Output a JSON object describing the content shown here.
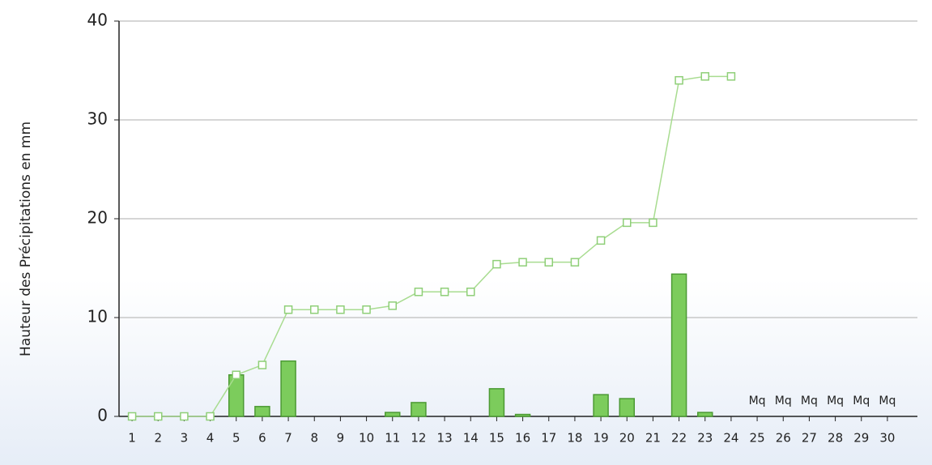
{
  "chart_data": {
    "type": "bar+line",
    "y_label": "Hauteur des Précipitations en mm",
    "categories": [
      "1",
      "2",
      "3",
      "4",
      "5",
      "6",
      "7",
      "8",
      "9",
      "10",
      "11",
      "12",
      "13",
      "14",
      "15",
      "16",
      "17",
      "18",
      "19",
      "20",
      "21",
      "22",
      "23",
      "24",
      "25",
      "26",
      "27",
      "28",
      "29",
      "30"
    ],
    "series": [
      {
        "type": "bar",
        "color": "#7ccc5c",
        "values": [
          0,
          0,
          0,
          0,
          4.2,
          1.0,
          5.6,
          0,
          0,
          0,
          0.4,
          1.4,
          0,
          0,
          2.8,
          0.2,
          0,
          0,
          2.2,
          1.8,
          0,
          14.4,
          0.4,
          0,
          null,
          null,
          null,
          null,
          null,
          null
        ],
        "value_labels": [
          null,
          null,
          null,
          null,
          null,
          null,
          null,
          null,
          null,
          null,
          null,
          null,
          null,
          null,
          null,
          null,
          null,
          null,
          null,
          null,
          null,
          null,
          null,
          null,
          "Mq",
          "Mq",
          "Mq",
          "Mq",
          "Mq",
          "Mq"
        ]
      },
      {
        "type": "line",
        "color": "#a8dc90",
        "values": [
          0,
          0,
          0,
          0,
          4.2,
          5.2,
          10.8,
          10.8,
          10.8,
          10.8,
          11.2,
          12.6,
          12.6,
          12.6,
          15.4,
          15.6,
          15.6,
          15.6,
          17.8,
          19.6,
          19.6,
          34.0,
          34.4,
          34.4,
          null,
          null,
          null,
          null,
          null,
          null
        ]
      }
    ],
    "ylim": [
      0,
      40
    ],
    "yticks": [
      0,
      10,
      20,
      30,
      40
    ],
    "grid": true
  }
}
